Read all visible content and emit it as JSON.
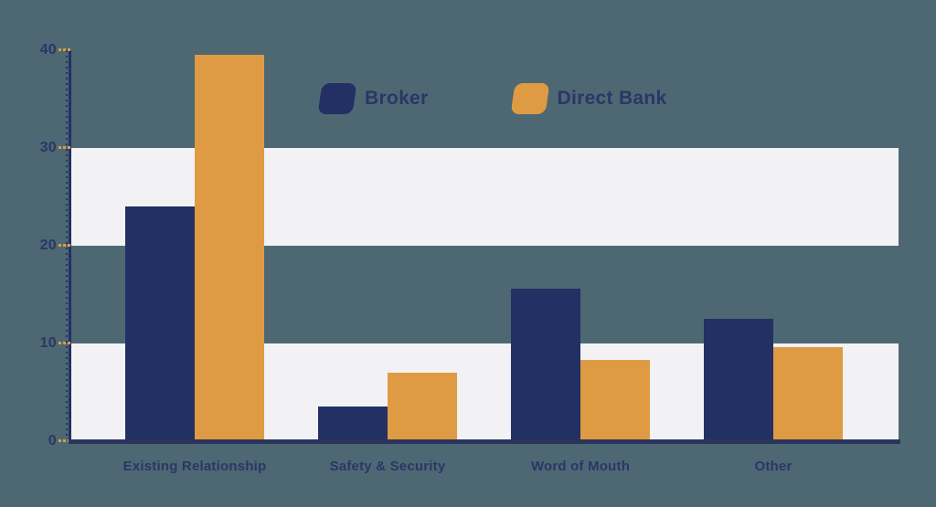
{
  "chart_data": {
    "type": "bar",
    "title": "",
    "xlabel": "",
    "ylabel": "",
    "categories": [
      "Existing Relationship",
      "Safety & Security",
      "Word of Mouth",
      "Other"
    ],
    "series": [
      {
        "name": "Broker",
        "color": "#233064",
        "values": [
          23.8,
          3.4,
          15.4,
          12.3
        ]
      },
      {
        "name": "Direct Bank",
        "color": "#df9b43",
        "values": [
          39.3,
          6.8,
          8.1,
          9.4
        ]
      }
    ],
    "ylim": [
      0,
      40
    ],
    "yticks": [
      0,
      10,
      20,
      30,
      40
    ],
    "grid": "alternating horizontal bands",
    "bands": [
      [
        0,
        10
      ],
      [
        20,
        30
      ]
    ],
    "legend_position": "top-center",
    "colors": {
      "background": "#4d6873",
      "band": "#f2f2f4",
      "axis": "#2b355c",
      "text": "#2b3666",
      "tick_accent": "#df9b43"
    }
  }
}
